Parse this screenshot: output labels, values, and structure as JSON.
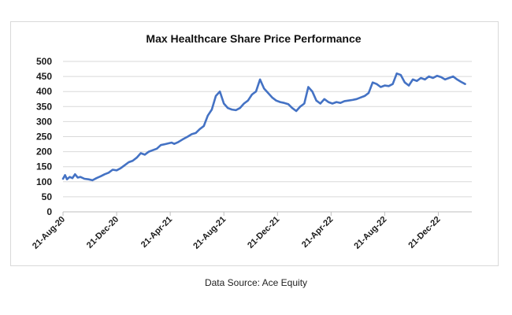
{
  "chart_data": {
    "type": "line",
    "title": "Max Healthcare Share Price Performance",
    "xlabel": "",
    "ylabel": "",
    "ylim": [
      0,
      500
    ],
    "yticks": [
      0,
      50,
      100,
      150,
      200,
      250,
      300,
      350,
      400,
      450,
      500
    ],
    "xticks": [
      "21-Aug-20",
      "21-Dec-20",
      "21-Apr-21",
      "21-Aug-21",
      "21-Dec-21",
      "21-Apr-22",
      "21-Aug-22",
      "21-Dec-22"
    ],
    "grid": "horizontal",
    "series": [
      {
        "name": "Max Healthcare",
        "color": "#4472c4",
        "x_months": [
          0,
          0.15,
          0.3,
          0.5,
          0.7,
          0.9,
          1.1,
          1.3,
          1.6,
          1.9,
          2.2,
          2.5,
          2.8,
          3.1,
          3.4,
          3.7,
          4.0,
          4.3,
          4.6,
          4.9,
          5.2,
          5.5,
          5.8,
          6.1,
          6.4,
          6.7,
          7.0,
          7.3,
          7.6,
          7.9,
          8.1,
          8.3,
          8.6,
          8.9,
          9.1,
          9.3,
          9.6,
          9.9,
          10.2,
          10.5,
          10.8,
          11.1,
          11.4,
          11.7,
          12.0,
          12.3,
          12.6,
          12.9,
          13.2,
          13.5,
          13.8,
          14.1,
          14.4,
          14.7,
          15.0,
          15.3,
          15.6,
          15.9,
          16.2,
          16.5,
          16.8,
          17.1,
          17.4,
          17.7,
          18.0,
          18.3,
          18.6,
          18.9,
          19.2,
          19.5,
          19.8,
          20.1,
          20.4,
          20.7,
          21.0,
          21.3,
          21.6,
          21.9,
          22.2,
          22.5,
          22.8,
          23.1,
          23.4,
          23.7,
          24.0,
          24.3,
          24.6,
          24.9,
          25.2,
          25.5,
          25.8,
          26.1,
          26.4,
          26.7,
          27.0,
          27.3,
          27.6,
          27.9,
          28.2,
          28.5,
          28.8,
          29.1,
          29.4,
          29.7,
          30.0
        ],
        "values": [
          110,
          122,
          108,
          116,
          112,
          125,
          114,
          116,
          110,
          108,
          105,
          112,
          118,
          125,
          130,
          140,
          138,
          145,
          155,
          165,
          170,
          180,
          195,
          190,
          200,
          205,
          210,
          222,
          225,
          228,
          230,
          226,
          232,
          240,
          245,
          250,
          258,
          262,
          275,
          285,
          320,
          340,
          385,
          400,
          360,
          345,
          340,
          338,
          345,
          360,
          370,
          390,
          400,
          440,
          410,
          395,
          380,
          370,
          365,
          362,
          358,
          345,
          335,
          350,
          360,
          415,
          400,
          370,
          360,
          375,
          365,
          360,
          365,
          362,
          368,
          370,
          372,
          375,
          380,
          385,
          395,
          430,
          425,
          415,
          420,
          418,
          425,
          460,
          455,
          430,
          420,
          440,
          435,
          445,
          440,
          450,
          445,
          452,
          448,
          440,
          445,
          450,
          440,
          432,
          425
        ]
      }
    ]
  },
  "source_text": "Data Source: Ace Equity"
}
